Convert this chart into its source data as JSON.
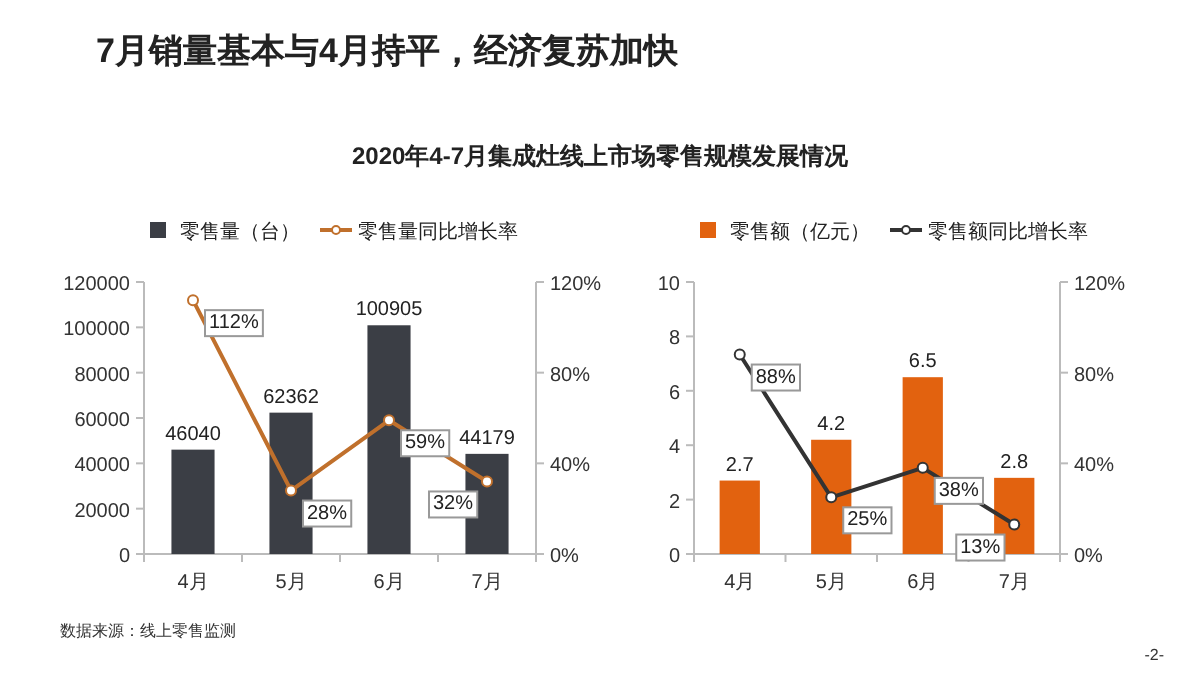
{
  "chart_data": [
    {
      "type": "bar",
      "title": "7月销量基本与4月持平，经济复苏加快",
      "subtitle": "2020年4-7月集成灶线上市场零售规模发展情况",
      "categories": [
        "4月",
        "5月",
        "6月",
        "7月"
      ],
      "legend": "top",
      "grid": false,
      "series": [
        {
          "name": "零售量（台）",
          "color": "#3b3e45",
          "values": [
            46040,
            62362,
            100905,
            44179
          ],
          "value_labels": [
            "46040",
            "62362",
            "100905",
            "44179"
          ]
        },
        {
          "name": "零售量同比增长率",
          "type": "line",
          "axis": "y2",
          "color": "#c0702c",
          "marker": "circle",
          "values": [
            112,
            28,
            59,
            32
          ],
          "value_labels": [
            "112%",
            "28%",
            "59%",
            "32%"
          ]
        }
      ],
      "ylim": [
        0,
        120000
      ],
      "yticks": [
        0,
        20000,
        40000,
        60000,
        80000,
        100000,
        120000
      ],
      "y2lim": [
        0,
        120
      ],
      "y2ticks": [
        {
          "value": 0,
          "label": "0%"
        },
        {
          "value": 40,
          "label": "40%"
        },
        {
          "value": 80,
          "label": "80%"
        },
        {
          "value": 120,
          "label": "120%"
        }
      ],
      "annotations": [
        "数据来源：线上零售监测"
      ]
    },
    {
      "type": "bar",
      "categories": [
        "4月",
        "5月",
        "6月",
        "7月"
      ],
      "legend": "top",
      "grid": false,
      "series": [
        {
          "name": "零售额（亿元）",
          "color": "#e2620f",
          "values": [
            2.7,
            4.2,
            6.5,
            2.8
          ],
          "value_labels": [
            "2.7",
            "4.2",
            "6.5",
            "2.8"
          ]
        },
        {
          "name": "零售额同比增长率",
          "type": "line",
          "axis": "y2",
          "color": "#333333",
          "marker": "circle",
          "values": [
            88,
            25,
            38,
            13
          ],
          "value_labels": [
            "88%",
            "25%",
            "38%",
            "13%"
          ]
        }
      ],
      "ylim": [
        0,
        10
      ],
      "yticks": [
        0,
        2,
        4,
        6,
        8,
        10
      ],
      "y2lim": [
        0,
        120
      ],
      "y2ticks": [
        {
          "value": 0,
          "label": "0%"
        },
        {
          "value": 40,
          "label": "40%"
        },
        {
          "value": 80,
          "label": "80%"
        },
        {
          "value": 120,
          "label": "120%"
        }
      ],
      "annotations": [
        "-2-"
      ]
    }
  ]
}
